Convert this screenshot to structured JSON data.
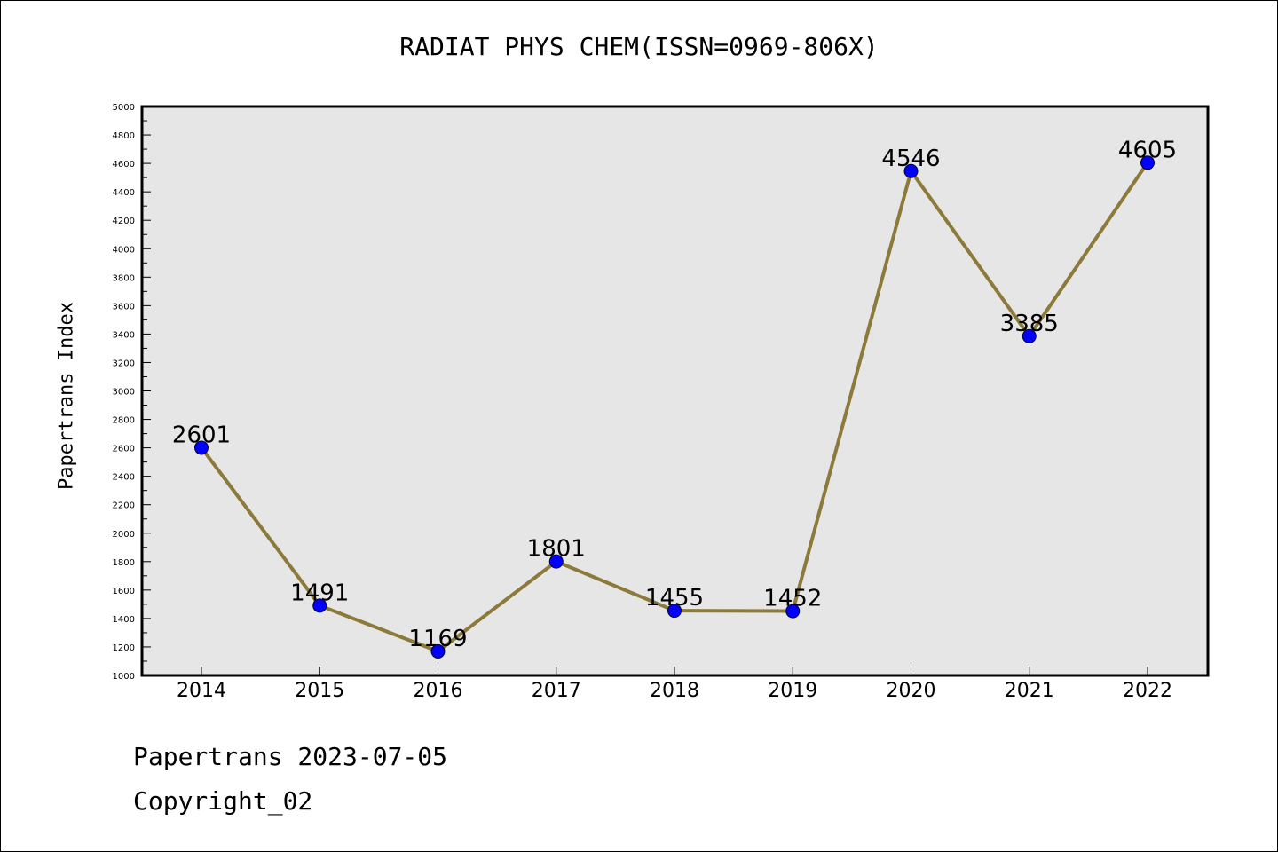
{
  "chart_data": {
    "type": "line",
    "title": "RADIAT PHYS CHEM(ISSN=0969-806X)",
    "xlabel": "",
    "ylabel": "Papertrans Index",
    "categories": [
      "2014",
      "2015",
      "2016",
      "2017",
      "2018",
      "2019",
      "2020",
      "2021",
      "2022"
    ],
    "series": [
      {
        "values": [
          2601,
          1491,
          1169,
          1801,
          1455,
          1452,
          4546,
          3385,
          4605
        ],
        "line_color": "#8c7a3a",
        "marker_color": "#0000ff"
      }
    ],
    "ylim": [
      1000,
      5000
    ],
    "yticks": [
      "1000",
      "1200",
      "1400",
      "1600",
      "1800",
      "2000",
      "2200",
      "2400",
      "2600",
      "2800",
      "3000",
      "3200",
      "3400",
      "3600",
      "3800",
      "4000",
      "4200",
      "4400",
      "4600",
      "4800",
      "5000"
    ],
    "data_labels": [
      "2601",
      "1491",
      "1169",
      "1801",
      "1455",
      "1452",
      "4546",
      "3385",
      "4605"
    ],
    "plot_background": "#e6e6e6",
    "grid": false,
    "legend": "none"
  },
  "footer": {
    "date_line": "Papertrans 2023-07-05",
    "copyright_line": "Copyright_02"
  }
}
